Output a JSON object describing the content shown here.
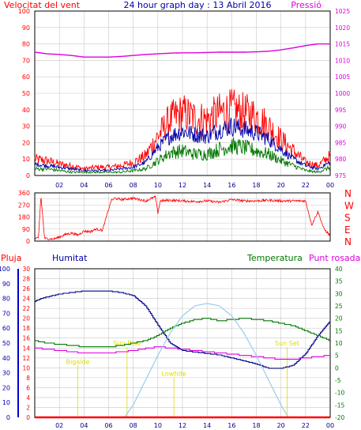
{
  "header": {
    "left_label": "Velocitat del vent",
    "title": "24 hour graph day : 13 Abril 2016",
    "right_label": "Pressió"
  },
  "colors": {
    "red": "#ff0000",
    "blue": "#0000aa",
    "navy": "#000088",
    "green": "#007700",
    "magenta": "#dd00dd",
    "lightblue": "#99ccee",
    "yellow": "#dddd00",
    "grid": "#c8c8c8"
  },
  "chart_data": [
    {
      "id": "wind_pressure",
      "type": "line",
      "title": "24 hour graph day : 13 Abril 2016",
      "ylabel": "Velocitat del vent",
      "y2label": "Pressió",
      "ylim": [
        0,
        100
      ],
      "y_ticks": [
        "0",
        "10",
        "20",
        "30",
        "40",
        "50",
        "60",
        "70",
        "80",
        "90",
        "100"
      ],
      "y2lim": [
        975,
        1025
      ],
      "y2_ticks": [
        "975",
        "980",
        "985",
        "990",
        "995",
        "1000",
        "1005",
        "1010",
        "1015",
        "1020",
        "1025"
      ],
      "x_ticks": [
        "02",
        "04",
        "06",
        "08",
        "10",
        "12",
        "14",
        "16",
        "18",
        "20",
        "22",
        "00"
      ],
      "grid": true,
      "series": [
        {
          "key": "gust",
          "axis": "left",
          "color": "red",
          "x": [
            0,
            1,
            2,
            3,
            4,
            5,
            6,
            7,
            8,
            9,
            10,
            11,
            12,
            13,
            14,
            15,
            16,
            17,
            18,
            19,
            20,
            21,
            22,
            23,
            24
          ],
          "values": [
            10,
            9,
            7,
            6,
            4,
            5,
            5,
            6,
            8,
            12,
            24,
            34,
            38,
            35,
            34,
            38,
            40,
            38,
            36,
            30,
            22,
            15,
            8,
            6,
            12
          ]
        },
        {
          "key": "avg",
          "axis": "left",
          "color": "blue",
          "x": [
            0,
            1,
            2,
            3,
            4,
            5,
            6,
            7,
            8,
            9,
            10,
            11,
            12,
            13,
            14,
            15,
            16,
            17,
            18,
            19,
            20,
            21,
            22,
            23,
            24
          ],
          "values": [
            7,
            6,
            5,
            4,
            3,
            3,
            3,
            4,
            5,
            8,
            17,
            24,
            27,
            25,
            24,
            28,
            30,
            28,
            26,
            22,
            16,
            10,
            6,
            4,
            8
          ]
        },
        {
          "key": "min",
          "axis": "left",
          "color": "green",
          "x": [
            0,
            1,
            2,
            3,
            4,
            5,
            6,
            7,
            8,
            9,
            10,
            11,
            12,
            13,
            14,
            15,
            16,
            17,
            18,
            19,
            20,
            21,
            22,
            23,
            24
          ],
          "values": [
            4,
            4,
            3,
            2,
            2,
            2,
            2,
            2,
            3,
            4,
            9,
            14,
            15,
            13,
            13,
            16,
            18,
            17,
            15,
            13,
            9,
            6,
            3,
            2,
            5
          ]
        },
        {
          "key": "pressure",
          "axis": "right",
          "color": "magenta",
          "x": [
            0,
            1,
            2,
            3,
            4,
            5,
            6,
            7,
            8,
            9,
            10,
            11,
            12,
            13,
            14,
            15,
            16,
            17,
            18,
            19,
            20,
            21,
            22,
            23,
            24
          ],
          "values": [
            1012.5,
            1012,
            1011.8,
            1011.5,
            1011,
            1011,
            1011,
            1011.2,
            1011.5,
            1011.8,
            1012,
            1012.2,
            1012.3,
            1012.3,
            1012.4,
            1012.5,
            1012.5,
            1012.5,
            1012.6,
            1012.8,
            1013.2,
            1013.8,
            1014.5,
            1015,
            1015
          ]
        }
      ]
    },
    {
      "id": "wind_direction",
      "type": "line",
      "ylim": [
        0,
        360
      ],
      "y_ticks": [
        "0",
        "45",
        "90",
        "135",
        "180",
        "225",
        "270",
        "315",
        "360"
      ],
      "direction_labels": [
        "N",
        "W",
        "S",
        "E",
        "N"
      ],
      "grid": true,
      "series": [
        {
          "key": "direction",
          "color": "red",
          "x": [
            0,
            0.3,
            0.5,
            0.8,
            1.5,
            2,
            2.5,
            3,
            3.5,
            4,
            4.5,
            5,
            5.5,
            6.2,
            6.5,
            7,
            8,
            9,
            9.8,
            10,
            10.2,
            11,
            12,
            13,
            14,
            15,
            16,
            17,
            18,
            19,
            20,
            21,
            22,
            22.5,
            23,
            23.5,
            24
          ],
          "values": [
            20,
            20,
            340,
            20,
            15,
            30,
            50,
            60,
            45,
            75,
            70,
            90,
            80,
            300,
            320,
            310,
            320,
            300,
            330,
            210,
            300,
            305,
            300,
            295,
            300,
            290,
            310,
            300,
            300,
            305,
            300,
            300,
            300,
            120,
            220,
            90,
            40
          ]
        }
      ]
    },
    {
      "id": "temp_humidity",
      "type": "line",
      "labels": {
        "rain": "Pluja",
        "humidity": "Humitat",
        "temperature": "Temperatura",
        "dewpoint": "Punt rosada"
      },
      "rain_lim": [
        0,
        30
      ],
      "rain_ticks": [
        "0",
        "2",
        "4",
        "6",
        "8",
        "10",
        "12",
        "14",
        "16",
        "18",
        "20",
        "22",
        "24",
        "26",
        "28",
        "30"
      ],
      "humidity_lim": [
        0,
        100
      ],
      "humidity_ticks": [
        "0",
        "10",
        "20",
        "30",
        "40",
        "50",
        "60",
        "70",
        "80",
        "90",
        "100"
      ],
      "temp_lim": [
        -20,
        40
      ],
      "temp_ticks": [
        "-20",
        "-15",
        "-10",
        "-5",
        "0",
        "5",
        "10",
        "15",
        "20",
        "25",
        "30",
        "35",
        "40"
      ],
      "x_ticks": [
        "02",
        "04",
        "06",
        "08",
        "10",
        "12",
        "14",
        "16",
        "18",
        "20",
        "22",
        "00"
      ],
      "grid": true,
      "annotations": [
        {
          "label": "Bigalde",
          "x": 3.5,
          "y": 10.8
        },
        {
          "label": "Sun Rise",
          "x": 7.5,
          "y": 14.5
        },
        {
          "label": "Lowtide",
          "x": 11.3,
          "y": 8.4
        },
        {
          "label": "Sun Set",
          "x": 20.5,
          "y": 14.5
        }
      ],
      "series": [
        {
          "key": "humidity",
          "axis": "humidity",
          "color": "navy",
          "x": [
            0,
            0.5,
            1,
            2,
            3,
            4,
            5,
            6,
            7,
            8,
            9,
            10,
            11,
            12,
            13,
            14,
            15,
            16,
            17,
            18,
            19,
            20,
            21,
            22,
            23,
            24
          ],
          "values": [
            78,
            80,
            81,
            83,
            84,
            85,
            85,
            85,
            84,
            82,
            75,
            62,
            50,
            45,
            44,
            43,
            42,
            40,
            38,
            36,
            33,
            33,
            35,
            43,
            55,
            65
          ]
        },
        {
          "key": "temperature",
          "axis": "temp",
          "color": "green",
          "x": [
            0,
            1,
            2,
            3,
            4,
            5,
            6,
            7,
            8,
            9,
            10,
            11,
            12,
            13,
            14,
            15,
            16,
            17,
            18,
            19,
            20,
            21,
            22,
            23,
            24
          ],
          "values": [
            11,
            10,
            9.5,
            9,
            8.5,
            8.5,
            8.5,
            9,
            10,
            11,
            13,
            16,
            18,
            19.5,
            20,
            19,
            19.5,
            20,
            19.5,
            19,
            18,
            17,
            15,
            13,
            11
          ]
        },
        {
          "key": "dewpoint",
          "axis": "temp",
          "color": "magenta",
          "x": [
            0,
            1,
            2,
            3,
            4,
            5,
            6,
            7,
            8,
            9,
            10,
            11,
            12,
            13,
            14,
            15,
            16,
            17,
            18,
            19,
            20,
            21,
            22,
            23,
            24
          ],
          "values": [
            8,
            7.5,
            7,
            6.5,
            6,
            6,
            6,
            6.5,
            7,
            7.8,
            8.5,
            8,
            7.5,
            7,
            6.5,
            6,
            5.5,
            5,
            4.5,
            4,
            3.5,
            3.5,
            4,
            4.5,
            5
          ]
        },
        {
          "key": "solar",
          "axis": "temp",
          "color": "lightblue",
          "x": [
            7.3,
            8,
            9,
            10,
            11,
            12,
            13,
            14,
            15,
            16,
            17,
            18,
            19,
            20,
            20.6
          ],
          "values": [
            -20,
            -15,
            -5,
            5,
            14,
            21,
            25,
            26,
            25,
            21,
            14,
            5,
            -5,
            -15,
            -20
          ]
        },
        {
          "key": "rain",
          "axis": "rain",
          "color": "red",
          "x": [
            0,
            24
          ],
          "values": [
            0,
            0
          ]
        }
      ]
    }
  ]
}
